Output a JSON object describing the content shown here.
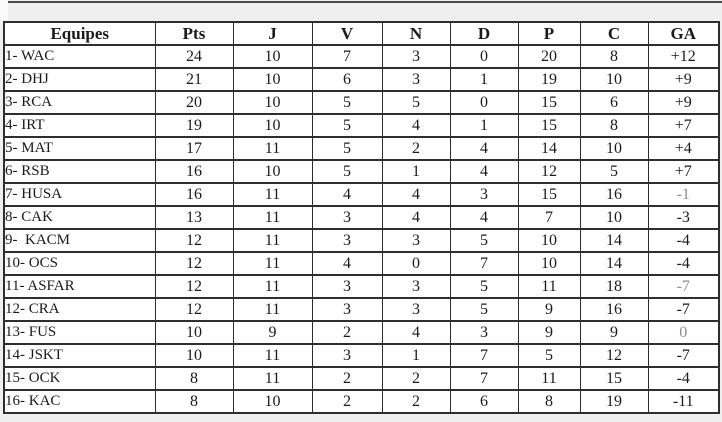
{
  "page": {
    "background_color": "#efefef",
    "top_line_color": "#4a4a4a",
    "table_border_color": "#2e2e2e",
    "muted_text_color": "#8d8d8d"
  },
  "table": {
    "columns": [
      {
        "key": "equipe",
        "label": "Equipes"
      },
      {
        "key": "pts",
        "label": "Pts"
      },
      {
        "key": "j",
        "label": "J"
      },
      {
        "key": "v",
        "label": "V"
      },
      {
        "key": "n",
        "label": "N"
      },
      {
        "key": "d",
        "label": "D"
      },
      {
        "key": "p",
        "label": "P"
      },
      {
        "key": "c",
        "label": "C"
      },
      {
        "key": "ga",
        "label": "GA"
      }
    ],
    "rows": [
      {
        "equipe": "1- WAC",
        "pts": "24",
        "j": "10",
        "v": "7",
        "n": "3",
        "d": "0",
        "p": "20",
        "c": "8",
        "ga": "+12",
        "ga_muted": false
      },
      {
        "equipe": "2- DHJ",
        "pts": "21",
        "j": "10",
        "v": "6",
        "n": "3",
        "d": "1",
        "p": "19",
        "c": "10",
        "ga": "+9",
        "ga_muted": false
      },
      {
        "equipe": "3- RCA",
        "pts": "20",
        "j": "10",
        "v": "5",
        "n": "5",
        "d": "0",
        "p": "15",
        "c": "6",
        "ga": "+9",
        "ga_muted": false
      },
      {
        "equipe": "4- IRT",
        "pts": "19",
        "j": "10",
        "v": "5",
        "n": "4",
        "d": "1",
        "p": "15",
        "c": "8",
        "ga": "+7",
        "ga_muted": false
      },
      {
        "equipe": "5- MAT",
        "pts": "17",
        "j": "11",
        "v": "5",
        "n": "2",
        "d": "4",
        "p": "14",
        "c": "10",
        "ga": "+4",
        "ga_muted": false
      },
      {
        "equipe": "6- RSB",
        "pts": "16",
        "j": "10",
        "v": "5",
        "n": "1",
        "d": "4",
        "p": "12",
        "c": "5",
        "ga": "+7",
        "ga_muted": false
      },
      {
        "equipe": "7- HUSA",
        "pts": "16",
        "j": "11",
        "v": "4",
        "n": "4",
        "d": "3",
        "p": "15",
        "c": "16",
        "ga": "-1",
        "ga_muted": true
      },
      {
        "equipe": "8- CAK",
        "pts": "13",
        "j": "11",
        "v": "3",
        "n": "4",
        "d": "4",
        "p": "7",
        "c": "10",
        "ga": "-3",
        "ga_muted": false
      },
      {
        "equipe": "9-  KACM",
        "pts": "12",
        "j": "11",
        "v": "3",
        "n": "3",
        "d": "5",
        "p": "10",
        "c": "14",
        "ga": "-4",
        "ga_muted": false
      },
      {
        "equipe": "10- OCS",
        "pts": "12",
        "j": "11",
        "v": "4",
        "n": "0",
        "d": "7",
        "p": "10",
        "c": "14",
        "ga": "-4",
        "ga_muted": false
      },
      {
        "equipe": "11- ASFAR",
        "pts": "12",
        "j": "11",
        "v": "3",
        "n": "3",
        "d": "5",
        "p": "11",
        "c": "18",
        "ga": "-7",
        "ga_muted": true
      },
      {
        "equipe": "12- CRA",
        "pts": "12",
        "j": "11",
        "v": "3",
        "n": "3",
        "d": "5",
        "p": "9",
        "c": "16",
        "ga": "-7",
        "ga_muted": false
      },
      {
        "equipe": "13- FUS",
        "pts": "10",
        "j": "9",
        "v": "2",
        "n": "4",
        "d": "3",
        "p": "9",
        "c": "9",
        "ga": "0",
        "ga_muted": true
      },
      {
        "equipe": "14- JSKT",
        "pts": "10",
        "j": "11",
        "v": "3",
        "n": "1",
        "d": "7",
        "p": "5",
        "c": "12",
        "ga": "-7",
        "ga_muted": false
      },
      {
        "equipe": "15- OCK",
        "pts": "8",
        "j": "11",
        "v": "2",
        "n": "2",
        "d": "7",
        "p": "11",
        "c": "15",
        "ga": "-4",
        "ga_muted": false
      },
      {
        "equipe": "16- KAC",
        "pts": "8",
        "j": "10",
        "v": "2",
        "n": "2",
        "d": "6",
        "p": "8",
        "c": "19",
        "ga": "-11",
        "ga_muted": false
      }
    ]
  }
}
